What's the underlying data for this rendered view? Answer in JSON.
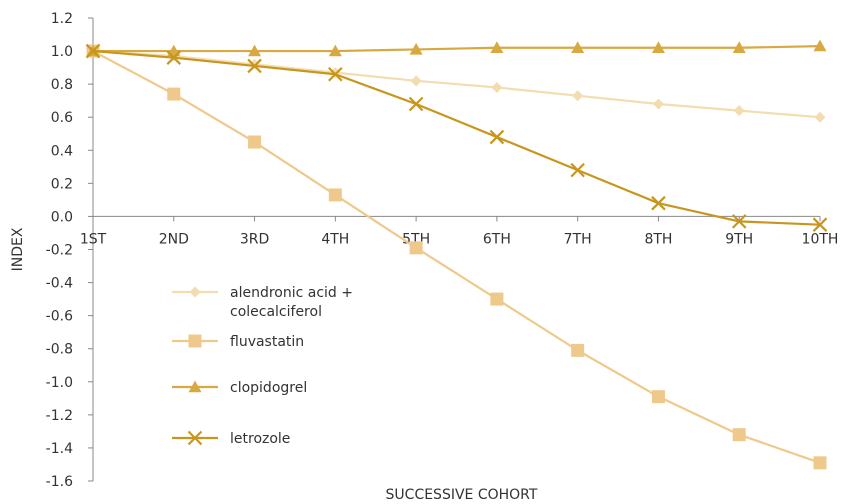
{
  "chart_data": {
    "type": "line",
    "title": "",
    "xlabel": "SUCCESSIVE COHORT",
    "ylabel": "INDEX",
    "categories": [
      "1ST",
      "2ND",
      "3RD",
      "4TH",
      "5TH",
      "6TH",
      "7TH",
      "8TH",
      "9TH",
      "10TH"
    ],
    "ylim": [
      -1.6,
      1.2
    ],
    "yticks": [
      "1.2",
      "1.0",
      "0.8",
      "0.6",
      "0.4",
      "0.2",
      "0.0",
      "-0.2",
      "-0.4",
      "-0.6",
      "-0.8",
      "-1.0",
      "-1.2",
      "-1.4",
      "-1.6"
    ],
    "ytick_values": [
      1.2,
      1.0,
      0.8,
      0.6,
      0.4,
      0.2,
      0.0,
      -0.2,
      -0.4,
      -0.6,
      -0.8,
      -1.0,
      -1.2,
      -1.4,
      -1.6
    ],
    "grid": false,
    "legend_position": "left, below zero line",
    "series": [
      {
        "name_lines": [
          "alendronic acid +",
          "colecalciferol"
        ],
        "marker": "diamond",
        "color": "#F3DDB0",
        "values": [
          1.0,
          0.97,
          0.92,
          0.87,
          0.82,
          0.78,
          0.73,
          0.68,
          0.64,
          0.6
        ]
      },
      {
        "name_lines": [
          "fluvastatin"
        ],
        "marker": "square",
        "color": "#EFC98B",
        "values": [
          1.0,
          0.74,
          0.45,
          0.13,
          -0.19,
          -0.5,
          -0.81,
          -1.09,
          -1.32,
          -1.49
        ]
      },
      {
        "name_lines": [
          "clopidogrel"
        ],
        "marker": "triangle",
        "color": "#D9A941",
        "values": [
          1.0,
          1.0,
          1.0,
          1.0,
          1.01,
          1.02,
          1.02,
          1.02,
          1.02,
          1.03
        ]
      },
      {
        "name_lines": [
          "letrozole"
        ],
        "marker": "x",
        "color": "#C8961E",
        "values": [
          1.0,
          0.96,
          0.91,
          0.86,
          0.68,
          0.48,
          0.28,
          0.08,
          -0.03,
          -0.05
        ]
      }
    ]
  }
}
